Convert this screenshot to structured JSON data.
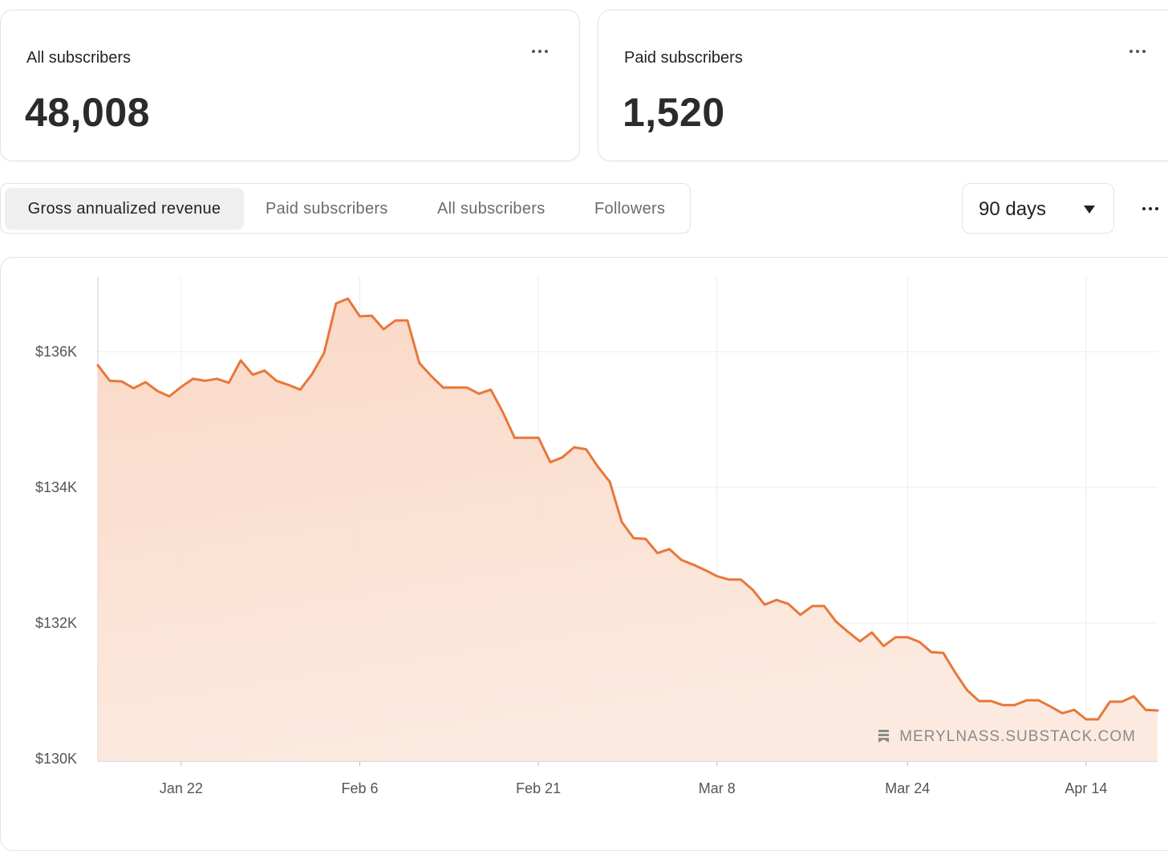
{
  "cards": [
    {
      "title": "All subscribers",
      "value": "48,008"
    },
    {
      "title": "Paid subscribers",
      "value": "1,520"
    }
  ],
  "tabs": [
    "Gross annualized revenue",
    "Paid subscribers",
    "All subscribers",
    "Followers"
  ],
  "range_select": "90 days",
  "chart_data": {
    "type": "area",
    "color": "#e8773a",
    "fill_color": "#f9d9c8",
    "grid": true,
    "watermark": "MERYLNASS.SUBSTACK.COM",
    "categories": [
      null,
      null,
      null,
      null,
      null,
      null,
      null,
      "Jan 22",
      null,
      null,
      null,
      null,
      null,
      null,
      null,
      null,
      null,
      null,
      null,
      null,
      null,
      null,
      "Feb 6",
      null,
      null,
      null,
      null,
      null,
      null,
      null,
      null,
      null,
      null,
      null,
      null,
      null,
      null,
      "Feb 21",
      null,
      null,
      null,
      null,
      null,
      null,
      null,
      null,
      null,
      null,
      null,
      null,
      null,
      null,
      "Mar 8",
      null,
      null,
      null,
      null,
      null,
      null,
      null,
      null,
      null,
      null,
      null,
      null,
      null,
      null,
      null,
      "Mar 24",
      null,
      null,
      null,
      null,
      null,
      null,
      null,
      null,
      null,
      null,
      null,
      null,
      null,
      null,
      "Apr 14",
      null,
      null,
      null,
      null,
      null,
      null
    ],
    "values": [
      135800,
      135570,
      135560,
      135460,
      135550,
      135420,
      135340,
      135480,
      135600,
      135570,
      135600,
      135540,
      135870,
      135660,
      135720,
      135570,
      135510,
      135440,
      135670,
      135980,
      136710,
      136780,
      136520,
      136530,
      136330,
      136460,
      136460,
      135830,
      135640,
      135470,
      135470,
      135470,
      135380,
      135440,
      135110,
      134730,
      134730,
      134730,
      134370,
      134440,
      134590,
      134560,
      134300,
      134080,
      133490,
      133250,
      133240,
      133030,
      133090,
      132930,
      132860,
      132780,
      132690,
      132640,
      132640,
      132490,
      132270,
      132340,
      132280,
      132120,
      132250,
      132250,
      132020,
      131870,
      131730,
      131860,
      131660,
      131790,
      131790,
      131720,
      131570,
      131560,
      131270,
      131010,
      130850,
      130850,
      130790,
      130790,
      130860,
      130860,
      130770,
      130670,
      130720,
      130580,
      130580,
      130840,
      130840,
      130920,
      130720,
      130710
    ],
    "ylim": [
      130000,
      137100
    ],
    "yticks": [
      {
        "value": 130000,
        "label": "$130K"
      },
      {
        "value": 132000,
        "label": "$132K"
      },
      {
        "value": 134000,
        "label": "$134K"
      },
      {
        "value": 136000,
        "label": "$136K"
      }
    ]
  }
}
